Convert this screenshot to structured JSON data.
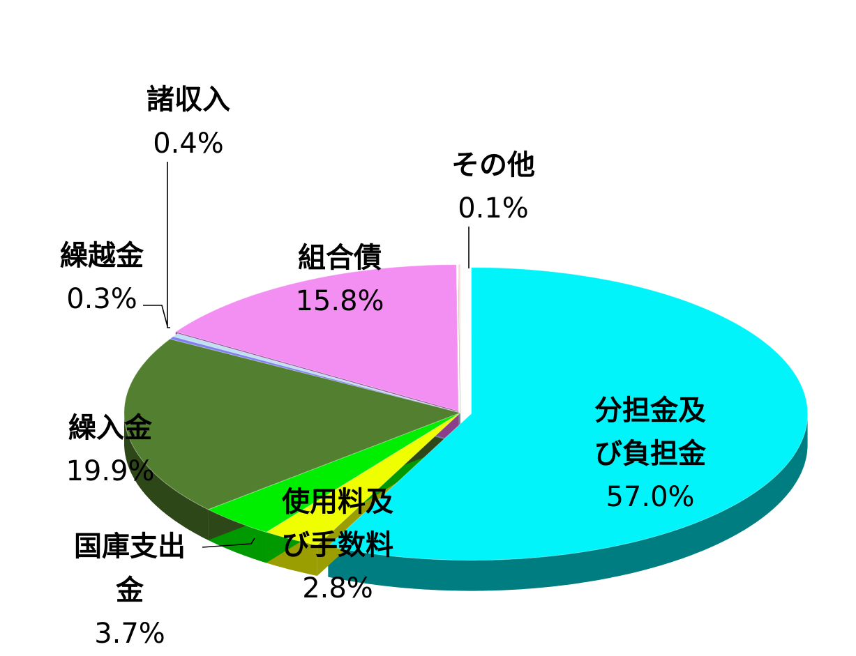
{
  "chart_data": {
    "type": "pie",
    "title": "",
    "legend": "none",
    "slices": [
      {
        "id": "s0",
        "name": "分担金及び負担金",
        "label_lines": [
          "分担金及",
          "び負担金"
        ],
        "value": 57.0,
        "value_label": "57.0%",
        "color": "#00f4fa",
        "side_color": "#007d80"
      },
      {
        "id": "s1",
        "name": "使用料及び手数料",
        "label_lines": [
          "使用料及",
          "び手数料"
        ],
        "value": 2.8,
        "value_label": "2.8%",
        "color": "#f0ff00",
        "side_color": "#9a9e00"
      },
      {
        "id": "s2",
        "name": "国庫支出金",
        "label_lines": [
          "国庫支出",
          "金"
        ],
        "value": 3.7,
        "value_label": "3.7%",
        "color": "#00ee00",
        "side_color": "#009900"
      },
      {
        "id": "s3",
        "name": "繰入金",
        "label_lines": [
          "繰入金"
        ],
        "value": 19.9,
        "value_label": "19.9%",
        "color": "#527f30",
        "side_color": "#2e4718"
      },
      {
        "id": "s4",
        "name": "繰越金",
        "label_lines": [
          "繰越金"
        ],
        "value": 0.3,
        "value_label": "0.3%",
        "color": "#7f82ee",
        "side_color": "#45478a"
      },
      {
        "id": "s5",
        "name": "諸収入",
        "label_lines": [
          "諸収入"
        ],
        "value": 0.4,
        "value_label": "0.4%",
        "color": "#bfe0f2",
        "side_color": "#6c8593"
      },
      {
        "id": "s6",
        "name": "組合債",
        "label_lines": [
          "組合債"
        ],
        "value": 15.8,
        "value_label": "15.8%",
        "color": "#f38ff2",
        "side_color": "#8a3f89"
      },
      {
        "id": "s7",
        "name": "その他",
        "label_lines": [
          "その他"
        ],
        "value": 0.1,
        "value_label": "0.1%",
        "color": "#ffd8d8",
        "side_color": "#b08585"
      }
    ]
  }
}
